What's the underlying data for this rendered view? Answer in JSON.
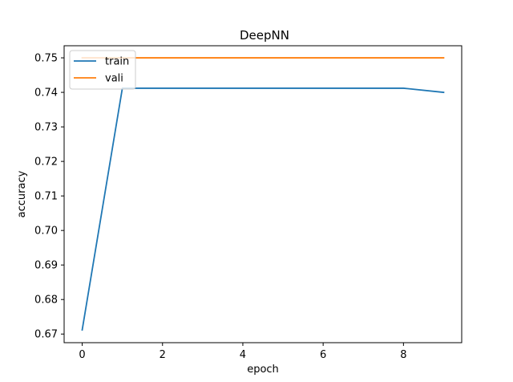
{
  "chart_data": {
    "type": "line",
    "title": "DeepNN",
    "xlabel": "epoch",
    "ylabel": "accuracy",
    "xlim": [
      -0.45,
      9.45
    ],
    "ylim": [
      0.6675,
      0.7535
    ],
    "xticks": [
      0,
      2,
      4,
      6,
      8
    ],
    "yticks": [
      0.67,
      0.68,
      0.69,
      0.7,
      0.71,
      0.72,
      0.73,
      0.74,
      0.75
    ],
    "ytick_labels": [
      "0.67",
      "0.68",
      "0.69",
      "0.70",
      "0.71",
      "0.72",
      "0.73",
      "0.74",
      "0.75"
    ],
    "x": [
      0,
      1,
      2,
      3,
      4,
      5,
      6,
      7,
      8,
      9
    ],
    "series": [
      {
        "name": "train",
        "color": "#1f77b4",
        "values": [
          0.6712,
          0.7412,
          0.7412,
          0.7412,
          0.7412,
          0.7412,
          0.7412,
          0.7412,
          0.7412,
          0.74
        ]
      },
      {
        "name": "vali",
        "color": "#ff7f0e",
        "values": [
          0.75,
          0.75,
          0.75,
          0.75,
          0.75,
          0.75,
          0.75,
          0.75,
          0.75,
          0.75
        ]
      }
    ],
    "legend": "upper left",
    "grid": false
  }
}
